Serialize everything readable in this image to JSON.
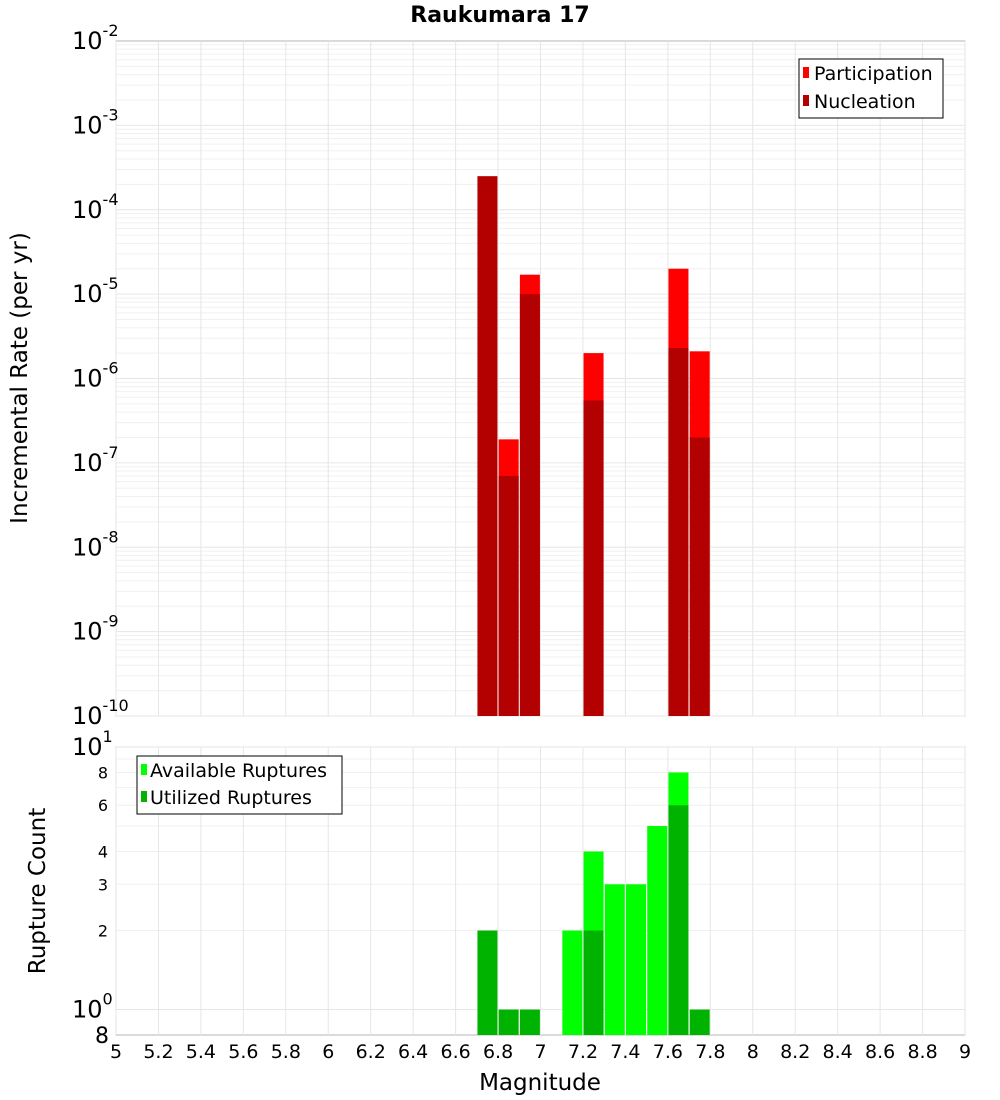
{
  "chart_data": [
    {
      "type": "bar",
      "title": "Raukumara 17",
      "ylabel": "Incremental Rate (per yr)",
      "xlim": [
        5,
        9
      ],
      "ylim": [
        1e-10,
        0.01
      ],
      "y_scale": "log",
      "y_tick_labels": [
        {
          "base": "10",
          "exp": "-10"
        },
        {
          "base": "10",
          "exp": "-9"
        },
        {
          "base": "10",
          "exp": "-8"
        },
        {
          "base": "10",
          "exp": "-7"
        },
        {
          "base": "10",
          "exp": "-6"
        },
        {
          "base": "10",
          "exp": "-5"
        },
        {
          "base": "10",
          "exp": "-4"
        },
        {
          "base": "10",
          "exp": "-3"
        },
        {
          "base": "10",
          "exp": "-2"
        }
      ],
      "legend_position": "top-right",
      "grid": true,
      "series": [
        {
          "name": "Participation",
          "color": "#ff0000",
          "x": [
            6.85,
            6.95,
            7.25,
            7.65,
            7.75
          ],
          "values": [
            1.9e-07,
            1.7e-05,
            2e-06,
            2e-05,
            2.1e-06
          ]
        },
        {
          "name": "Nucleation",
          "color": "#b30000",
          "x": [
            6.75,
            6.85,
            6.95,
            7.25,
            7.65,
            7.75
          ],
          "values": [
            0.00025,
            7e-08,
            1e-05,
            5.5e-07,
            2.3e-06,
            2e-07
          ]
        }
      ]
    },
    {
      "type": "bar",
      "xlabel": "Magnitude",
      "ylabel": "Rupture Count",
      "xlim": [
        5,
        9
      ],
      "ylim": [
        0.8,
        10
      ],
      "y_scale": "log",
      "x_tick_labels": [
        "5",
        "5.2",
        "5.4",
        "5.6",
        "5.8",
        "6",
        "6.2",
        "6.4",
        "6.6",
        "6.8",
        "7",
        "7.2",
        "7.4",
        "7.6",
        "7.8",
        "8",
        "8.2",
        "8.4",
        "8.6",
        "8.8",
        "9"
      ],
      "y_tick_labels_major": [
        {
          "base": "10",
          "exp": "0"
        },
        {
          "base": "10",
          "exp": "1"
        }
      ],
      "y_tick_labels_minor": [
        "2",
        "3",
        "4",
        "6",
        "8"
      ],
      "y_tick_label_bottom": "8",
      "legend_position": "top-left",
      "grid": true,
      "series": [
        {
          "name": "Available Ruptures",
          "color": "#00ff00",
          "x": [
            7.15,
            7.25,
            7.35,
            7.45,
            7.55,
            7.65
          ],
          "values": [
            2,
            4,
            3,
            3,
            5,
            8
          ]
        },
        {
          "name": "Utilized Ruptures",
          "color": "#00b300",
          "x": [
            6.75,
            6.85,
            6.95,
            7.25,
            7.65,
            7.75
          ],
          "values": [
            2,
            1,
            1,
            2,
            6,
            1
          ]
        }
      ]
    }
  ]
}
